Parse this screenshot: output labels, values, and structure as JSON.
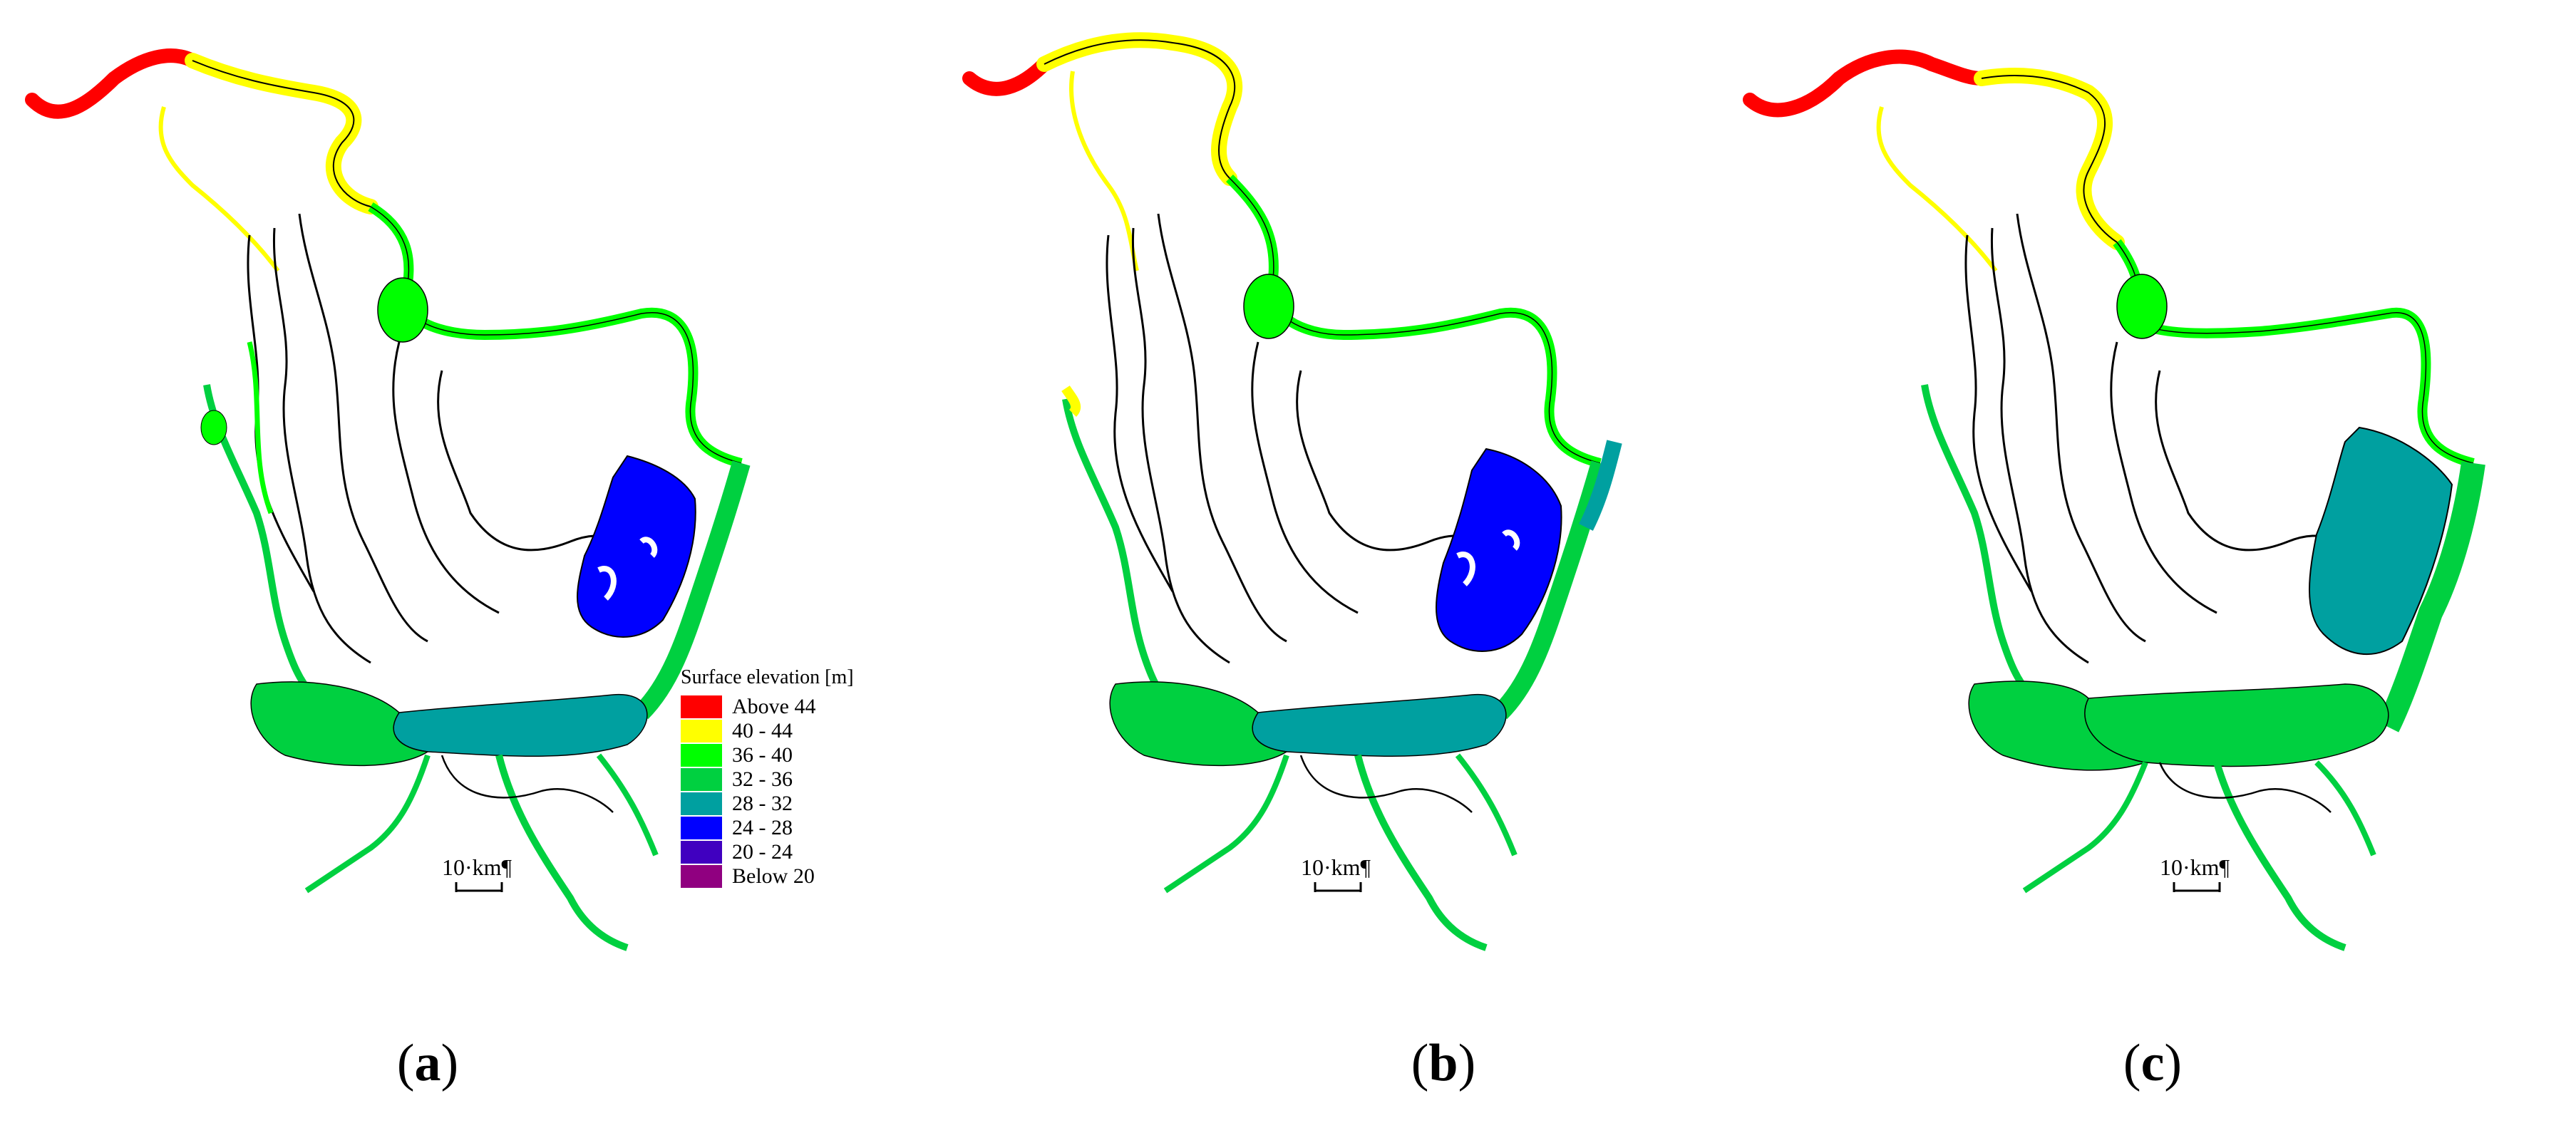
{
  "panels": [
    {
      "id": "a",
      "label": "a",
      "scale_label": "10·km¶"
    },
    {
      "id": "b",
      "label": "b",
      "scale_label": "10·km¶"
    },
    {
      "id": "c",
      "label": "c",
      "scale_label": "10·km¶"
    }
  ],
  "legend": {
    "title": "Surface elevation [m]",
    "items": [
      {
        "label": "Above 44",
        "color": "#ff0000"
      },
      {
        "label": "40 - 44",
        "color": "#ffff00"
      },
      {
        "label": "36 - 40",
        "color": "#00ff00"
      },
      {
        "label": "32 - 36",
        "color": "#00d040"
      },
      {
        "label": "28 - 32",
        "color": "#00a0a0"
      },
      {
        "label": "24 - 28",
        "color": "#0000ff"
      },
      {
        "label": "20 - 24",
        "color": "#4000c0"
      },
      {
        "label": "Below 20",
        "color": "#900080"
      }
    ]
  },
  "colors": {
    "above44": "#ff0000",
    "c40_44": "#ffff00",
    "c36_40": "#00ff00",
    "c32_36": "#00d040",
    "c28_32": "#00a0a0",
    "c24_28": "#0000ff",
    "boundary": "#000000"
  }
}
